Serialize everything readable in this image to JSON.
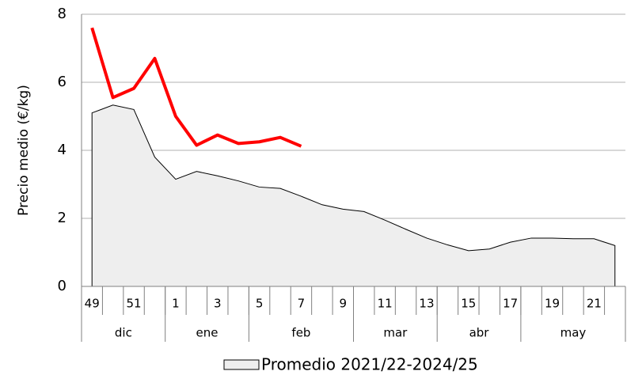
{
  "chart_data": {
    "type": "line",
    "ylabel": "Precio medio (€/kg)",
    "categories": [
      "49",
      null,
      "51",
      null,
      "1",
      null,
      "3",
      null,
      "5",
      null,
      "7",
      null,
      "9",
      null,
      "11",
      null,
      "13",
      null,
      "15",
      null,
      "17",
      null,
      "19",
      null,
      "21",
      null
    ],
    "months": [
      {
        "label": "dic",
        "span": 4
      },
      {
        "label": "ene",
        "span": 4
      },
      {
        "label": "feb",
        "span": 5
      },
      {
        "label": "mar",
        "span": 4
      },
      {
        "label": "abr",
        "span": 4
      },
      {
        "label": "may",
        "span": 5
      }
    ],
    "series": [
      {
        "name": "Promedio 2021/22-2024/25",
        "kind": "area",
        "color": "#eeeeee",
        "edge": "#000000",
        "values": [
          5.1,
          5.33,
          5.2,
          3.8,
          3.15,
          3.38,
          3.25,
          3.1,
          2.92,
          2.88,
          2.65,
          2.4,
          2.27,
          2.2,
          1.95,
          1.68,
          1.42,
          1.22,
          1.05,
          1.1,
          1.3,
          1.42,
          1.42,
          1.4,
          1.4,
          1.2
        ]
      },
      {
        "kind": "line",
        "color": "#ff0000",
        "values": [
          7.6,
          5.55,
          5.82,
          6.7,
          5.0,
          4.15,
          4.45,
          4.2,
          4.25,
          4.38,
          4.12,
          null,
          null,
          null,
          null,
          null,
          null,
          null,
          null,
          null,
          null,
          null,
          null,
          null,
          null,
          null
        ]
      }
    ],
    "ylim": [
      0,
      8
    ],
    "yticks": [
      0,
      2,
      4,
      6,
      8
    ],
    "grid": true
  }
}
